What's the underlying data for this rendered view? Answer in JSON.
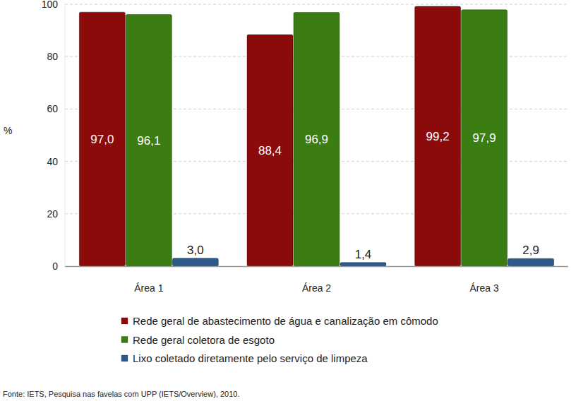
{
  "chart_data": {
    "type": "bar",
    "y_label": "%",
    "categories": [
      "Área 1",
      "Área 2",
      "Área 3"
    ],
    "series": [
      {
        "name": "Rede geral de abastecimento de água e canalização em cômodo",
        "color": "#8b0a0a",
        "values": [
          97.0,
          88.4,
          99.2
        ],
        "value_labels": [
          "97,0",
          "88,4",
          "99,2"
        ]
      },
      {
        "name": "Rede geral coletora de esgoto",
        "color": "#3b7d12",
        "values": [
          96.1,
          96.9,
          97.9
        ],
        "value_labels": [
          "96,1",
          "96,9",
          "97,9"
        ]
      },
      {
        "name": "Lixo coletado diretamente pelo serviço de limpeza",
        "color": "#2c5a8c",
        "values": [
          3.0,
          1.4,
          2.9
        ],
        "value_labels": [
          "3,0",
          "1,4",
          "2,9"
        ]
      }
    ],
    "ylim": [
      0,
      100
    ],
    "yticks": [
      0,
      20,
      40,
      60,
      80,
      100
    ],
    "grid": true,
    "data_labels": true,
    "legend": "bottom",
    "annotations": [
      "Fonte: IETS, Pesquisa nas favelas com UPP (IETS/Overview), 2010."
    ]
  }
}
